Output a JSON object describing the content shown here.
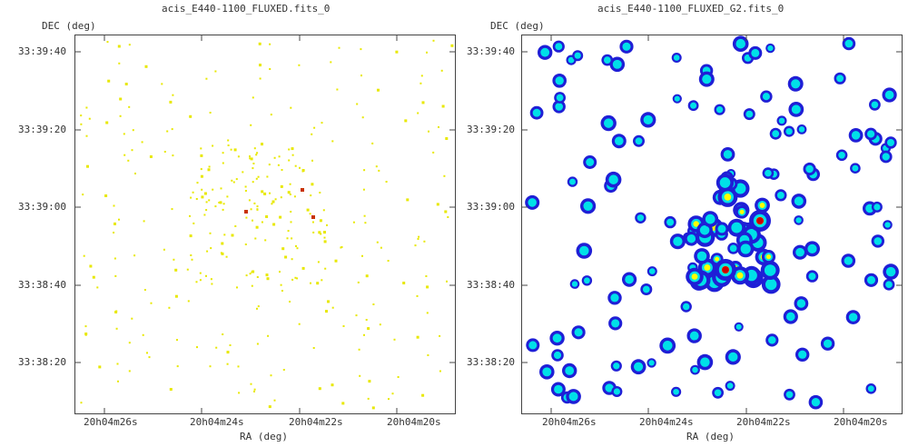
{
  "panels": [
    {
      "title": "acis_E440-1100_FLUXED.fits_0",
      "ylabel": "DEC (deg)",
      "xlabel": "RA (deg)",
      "yticks": [
        "33:39:40",
        "33:39:20",
        "33:39:00",
        "33:38:40",
        "33:38:20"
      ],
      "xticks": [
        "20h04m26s",
        "20h04m24s",
        "20h04m22s",
        "20h04m20s"
      ]
    },
    {
      "title": "acis_E440-1100_FLUXED_G2.fits_0",
      "ylabel": "DEC (deg)",
      "xlabel": "RA (deg)",
      "yticks": [
        "33:39:40",
        "33:39:20",
        "33:39:00",
        "33:38:40",
        "33:38:20"
      ],
      "xticks": [
        "20h04m26s",
        "20h04m24s",
        "20h04m22s",
        "20h04m20s"
      ]
    }
  ],
  "colors": {
    "raw_points": "#e8e800",
    "raw_bright": "#c83200",
    "smooth_low": "#1f1fd6",
    "smooth_mid": "#00e0e8",
    "smooth_high": "#ffff00",
    "smooth_peak": "#d00000"
  }
}
